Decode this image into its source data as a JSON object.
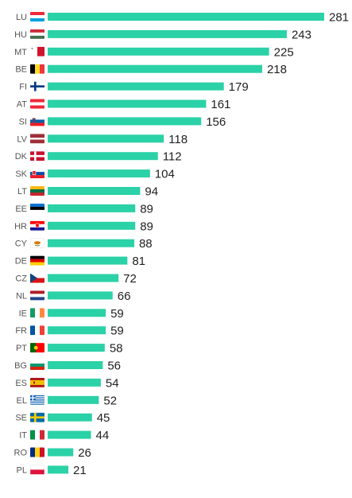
{
  "chart_data": {
    "type": "bar",
    "orientation": "horizontal",
    "categories": [
      "LU",
      "HU",
      "MT",
      "BE",
      "FI",
      "AT",
      "SI",
      "LV",
      "DK",
      "SK",
      "LT",
      "EE",
      "HR",
      "CY",
      "DE",
      "CZ",
      "NL",
      "IE",
      "FR",
      "PT",
      "BG",
      "ES",
      "EL",
      "SE",
      "IT",
      "RO",
      "PL"
    ],
    "values": [
      281,
      243,
      225,
      218,
      179,
      161,
      156,
      118,
      112,
      104,
      94,
      89,
      89,
      88,
      81,
      72,
      66,
      59,
      59,
      58,
      56,
      54,
      52,
      45,
      44,
      26,
      21
    ],
    "xlim": [
      0,
      281
    ],
    "bar_color": "#2bd1a7",
    "label_color": "#222222",
    "category_color": "#555555",
    "grid": false,
    "legend": "none",
    "title": "",
    "xlabel": "",
    "ylabel": ""
  }
}
